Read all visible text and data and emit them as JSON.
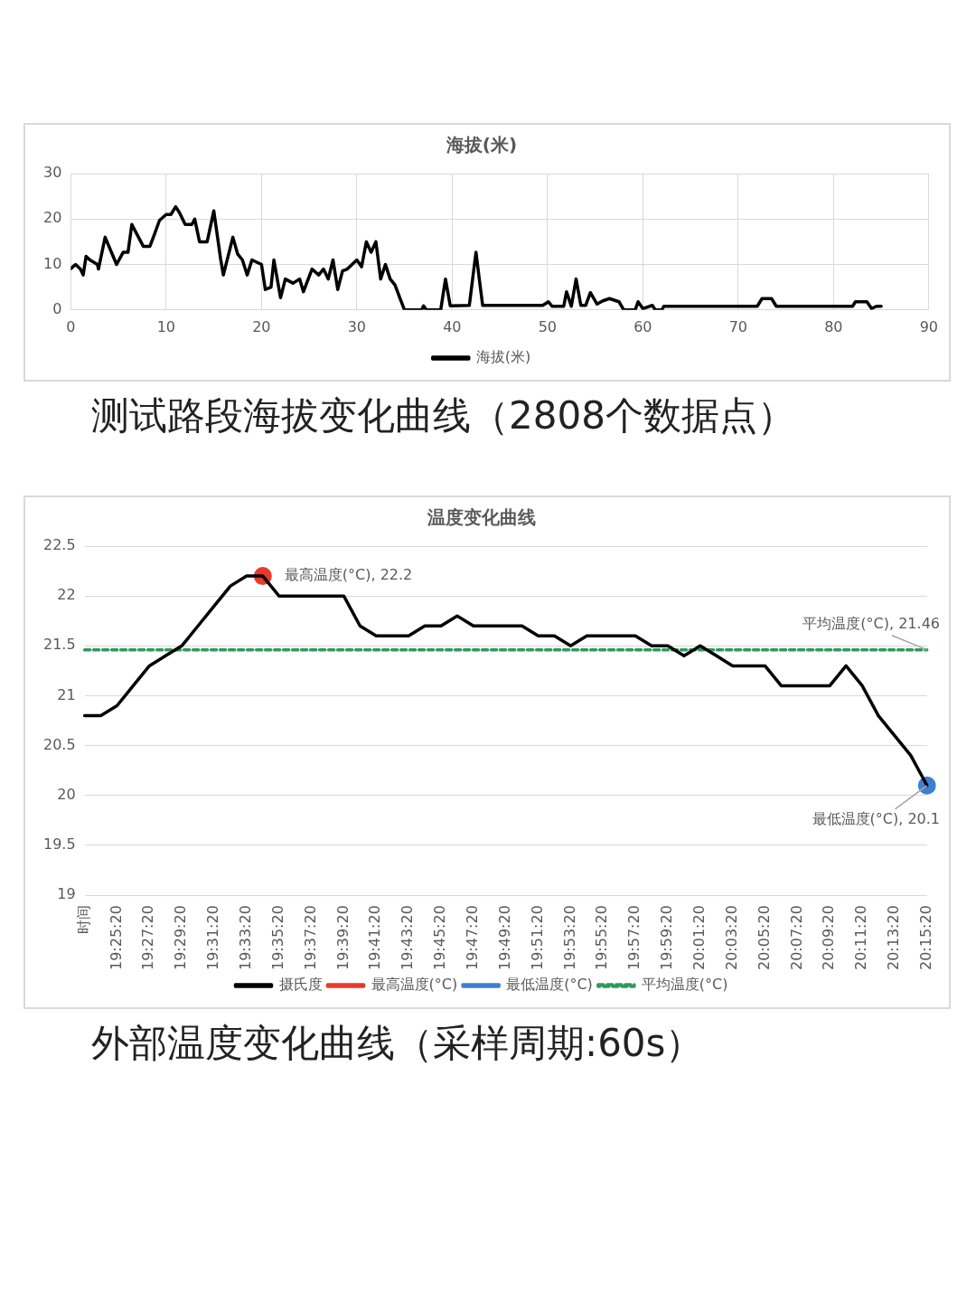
{
  "chart_data": [
    {
      "type": "line",
      "title": "海拔(米)",
      "annotations": [
        "测试路段海拔变化曲线（2808个数据点）"
      ],
      "x": [
        0,
        0.5,
        1,
        1.3,
        1.6,
        2,
        2.8,
        2.9,
        3.6,
        4.2,
        4.8,
        5.5,
        6,
        6.4,
        7,
        7.6,
        8.3,
        8.8,
        9.3,
        10,
        10.5,
        11,
        11.4,
        12,
        12.7,
        13,
        13.5,
        14.3,
        15,
        15.7,
        16,
        17,
        17.5,
        18,
        18.5,
        19,
        20,
        20.4,
        21,
        21.3,
        22,
        22.5,
        23.3,
        24,
        24.4,
        25.3,
        26,
        26.5,
        27,
        27.5,
        28,
        28.5,
        29,
        30,
        30.5,
        31,
        31.5,
        32,
        32.5,
        33,
        33.5,
        34,
        34.5,
        35,
        36.8,
        37,
        37.3,
        38.8,
        39.3,
        39.8,
        41.8,
        42.2,
        42.5,
        42.9,
        43.2,
        49.5,
        50.1,
        50.5,
        51.7,
        52,
        52.5,
        53,
        53.5,
        54,
        54.5,
        55.2,
        55.8,
        56.5,
        57.5,
        58,
        59.2,
        59.5,
        60,
        61,
        61.3,
        62,
        62.2,
        72,
        72.5,
        73.5,
        74,
        82,
        82.3,
        83.5,
        84,
        84.5,
        85
      ],
      "series": [
        {
          "name": "海拔(米)",
          "color": "#000000",
          "values": [
            9.1,
            10,
            9,
            7.7,
            11.8,
            11,
            10,
            9,
            16,
            13,
            10,
            12.7,
            12.7,
            18.8,
            16.4,
            14,
            14,
            16.8,
            19.7,
            21,
            21,
            22.7,
            21.4,
            18.8,
            18.8,
            20,
            15,
            15,
            21.8,
            11.4,
            7.7,
            16,
            12.3,
            11,
            7.7,
            11,
            10,
            4.5,
            5,
            11,
            2.7,
            6.8,
            5.9,
            6.8,
            4,
            9,
            7.7,
            9,
            6.8,
            11,
            4.5,
            8.6,
            9,
            11,
            9.5,
            15,
            12.7,
            15,
            6.8,
            10,
            6.8,
            5.5,
            2.7,
            0,
            0,
            0.9,
            0,
            0,
            6.8,
            0.9,
            1,
            7.7,
            12.7,
            5.9,
            1,
            1,
            1.8,
            0.8,
            0.8,
            4,
            0.8,
            6.8,
            1,
            1,
            3.8,
            1.3,
            2,
            2.5,
            1.8,
            0,
            0,
            1.8,
            0.3,
            1,
            0,
            0,
            0.8,
            0.8,
            2.5,
            2.5,
            0.8,
            0.8,
            1.8,
            1.8,
            0.3,
            0.8,
            0.8
          ]
        }
      ],
      "xlim": [
        0,
        90
      ],
      "xticks": [
        0,
        10,
        20,
        30,
        40,
        50,
        60,
        70,
        80,
        90
      ],
      "ylim": [
        0,
        30
      ],
      "yticks": [
        0,
        10,
        20,
        30
      ],
      "grid": true,
      "legend": "bottom",
      "marker": "none"
    },
    {
      "type": "line",
      "title": "温度变化曲线",
      "annotations": [
        "外部温度变化曲线（采样周期:60s）"
      ],
      "categories": [
        "时间",
        null,
        "19:25:20",
        null,
        "19:27:20",
        null,
        "19:29:20",
        null,
        "19:31:20",
        null,
        "19:33:20",
        null,
        "19:35:20",
        null,
        "19:37:20",
        null,
        "19:39:20",
        null,
        "19:41:20",
        null,
        "19:43:20",
        null,
        "19:45:20",
        null,
        "19:47:20",
        null,
        "19:49:20",
        null,
        "19:51:20",
        null,
        "19:53:20",
        null,
        "19:55:20",
        null,
        "19:57:20",
        null,
        "19:59:20",
        null,
        "20:01:20",
        null,
        "20:03:20",
        null,
        "20:05:20",
        null,
        "20:07:20",
        null,
        "20:09:20",
        null,
        "20:11:20",
        null,
        "20:13:20",
        null,
        "20:15:20"
      ],
      "series": [
        {
          "name": "摄氏度",
          "color": "#000000",
          "marker": "none",
          "line_style": "solid",
          "values": [
            20.8,
            20.8,
            20.9,
            21.1,
            21.3,
            21.4,
            21.5,
            21.7,
            21.9,
            22.1,
            22.2,
            22.2,
            22.0,
            22.0,
            22.0,
            22.0,
            22.0,
            21.7,
            21.6,
            21.6,
            21.6,
            21.7,
            21.7,
            21.8,
            21.7,
            21.7,
            21.7,
            21.7,
            21.6,
            21.6,
            21.5,
            21.6,
            21.6,
            21.6,
            21.6,
            21.5,
            21.5,
            21.4,
            21.5,
            21.4,
            21.3,
            21.3,
            21.3,
            21.1,
            21.1,
            21.1,
            21.1,
            21.3,
            21.1,
            20.8,
            20.6,
            20.4,
            20.1
          ]
        },
        {
          "name": "最高温度(°C)",
          "color": "#e8392b",
          "marker": "circle",
          "line_style": "solid",
          "values": [
            null,
            null,
            null,
            null,
            null,
            null,
            null,
            null,
            null,
            null,
            null,
            22.2,
            null,
            null,
            null,
            null,
            null,
            null,
            null,
            null,
            null,
            null,
            null,
            null,
            null,
            null,
            null,
            null,
            null,
            null,
            null,
            null,
            null,
            null,
            null,
            null,
            null,
            null,
            null,
            null,
            null,
            null,
            null,
            null,
            null,
            null,
            null,
            null,
            null,
            null,
            null,
            null,
            null
          ],
          "value_labels": [
            null,
            null,
            null,
            null,
            null,
            null,
            null,
            null,
            null,
            null,
            null,
            "最高温度(°C), 22.2",
            null,
            null,
            null,
            null,
            null,
            null,
            null,
            null,
            null,
            null,
            null,
            null,
            null,
            null,
            null,
            null,
            null,
            null,
            null,
            null,
            null,
            null,
            null,
            null,
            null,
            null,
            null,
            null,
            null,
            null,
            null,
            null,
            null,
            null,
            null,
            null,
            null,
            null,
            null,
            null,
            null
          ]
        },
        {
          "name": "最低温度(°C)",
          "color": "#3f7fcf",
          "marker": "circle",
          "line_style": "solid",
          "values": [
            null,
            null,
            null,
            null,
            null,
            null,
            null,
            null,
            null,
            null,
            null,
            null,
            null,
            null,
            null,
            null,
            null,
            null,
            null,
            null,
            null,
            null,
            null,
            null,
            null,
            null,
            null,
            null,
            null,
            null,
            null,
            null,
            null,
            null,
            null,
            null,
            null,
            null,
            null,
            null,
            null,
            null,
            null,
            null,
            null,
            null,
            null,
            null,
            null,
            null,
            null,
            null,
            20.1
          ],
          "value_labels": [
            null,
            null,
            null,
            null,
            null,
            null,
            null,
            null,
            null,
            null,
            null,
            null,
            null,
            null,
            null,
            null,
            null,
            null,
            null,
            null,
            null,
            null,
            null,
            null,
            null,
            null,
            null,
            null,
            null,
            null,
            null,
            null,
            null,
            null,
            null,
            null,
            null,
            null,
            null,
            null,
            null,
            null,
            null,
            null,
            null,
            null,
            null,
            null,
            null,
            null,
            null,
            null,
            "最低温度(°C), 20.1"
          ]
        },
        {
          "name": "平均温度(°C)",
          "color": "#2e9a5c",
          "marker": "none",
          "line_style": "dashed",
          "values": [
            21.46,
            21.46,
            21.46,
            21.46,
            21.46,
            21.46,
            21.46,
            21.46,
            21.46,
            21.46,
            21.46,
            21.46,
            21.46,
            21.46,
            21.46,
            21.46,
            21.46,
            21.46,
            21.46,
            21.46,
            21.46,
            21.46,
            21.46,
            21.46,
            21.46,
            21.46,
            21.46,
            21.46,
            21.46,
            21.46,
            21.46,
            21.46,
            21.46,
            21.46,
            21.46,
            21.46,
            21.46,
            21.46,
            21.46,
            21.46,
            21.46,
            21.46,
            21.46,
            21.46,
            21.46,
            21.46,
            21.46,
            21.46,
            21.46,
            21.46,
            21.46,
            21.46,
            21.46
          ],
          "value_labels": [
            null,
            null,
            null,
            null,
            null,
            null,
            null,
            null,
            null,
            null,
            null,
            null,
            null,
            null,
            null,
            null,
            null,
            null,
            null,
            null,
            null,
            null,
            null,
            null,
            null,
            null,
            null,
            null,
            null,
            null,
            null,
            null,
            null,
            null,
            null,
            null,
            null,
            null,
            null,
            null,
            null,
            null,
            null,
            null,
            null,
            null,
            null,
            null,
            null,
            null,
            null,
            null,
            "平均温度(°C), 21.46"
          ]
        }
      ],
      "ylim": [
        19,
        22.5
      ],
      "yticks": [
        19,
        19.5,
        20,
        20.5,
        21,
        21.5,
        22,
        22.5
      ],
      "grid": "y",
      "legend": "bottom"
    }
  ]
}
